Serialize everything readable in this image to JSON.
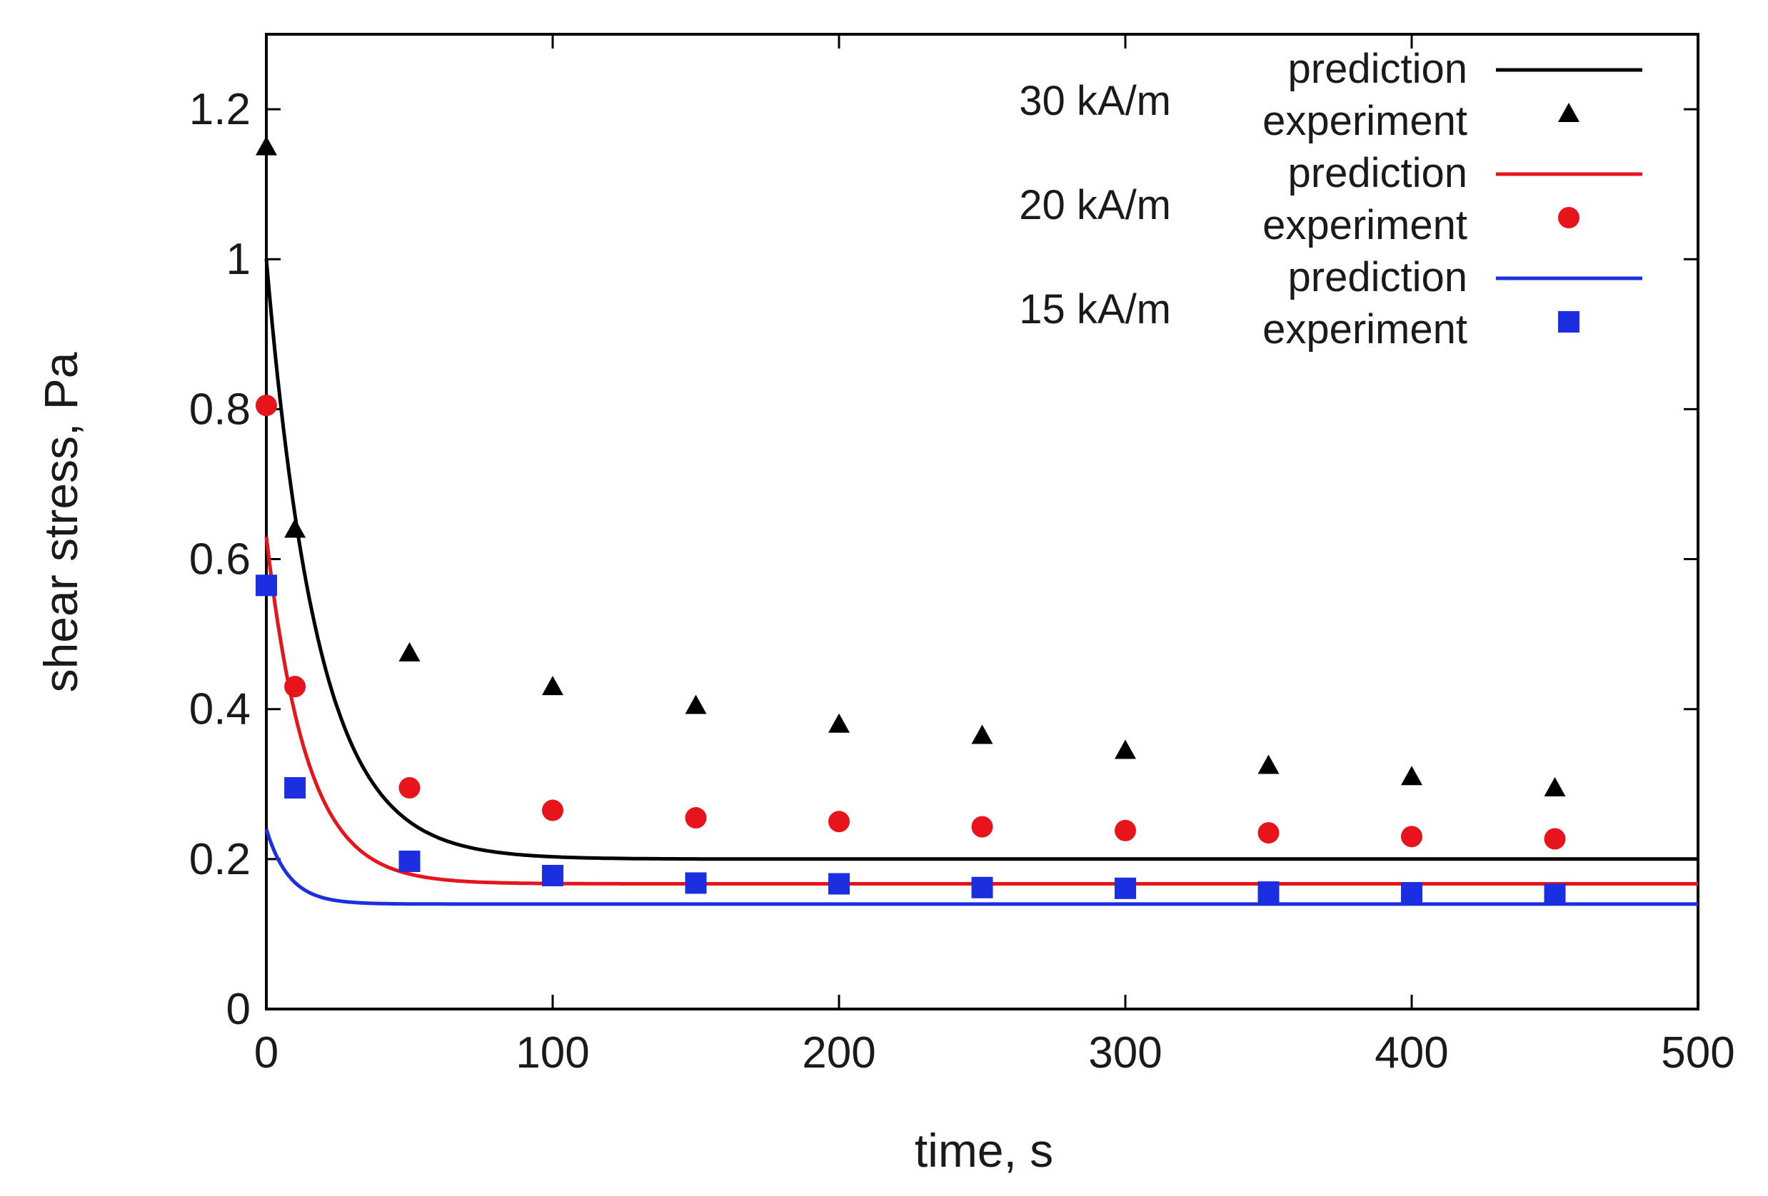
{
  "chart_data": {
    "type": "line",
    "title": "",
    "xlabel": "time, s",
    "ylabel": "shear stress, Pa",
    "xlim": [
      0,
      500
    ],
    "ylim": [
      0,
      1.3
    ],
    "xticks": [
      0,
      100,
      200,
      300,
      400,
      500
    ],
    "xtick_labels": [
      "0",
      "100",
      "200",
      "300",
      "400",
      "500"
    ],
    "yticks": [
      0,
      0.2,
      0.4,
      0.6,
      0.8,
      1,
      1.2
    ],
    "ytick_labels": [
      "0",
      "0.2",
      "0.4",
      "0.6",
      "0.8",
      "1",
      "1.2"
    ],
    "grid": false,
    "legend_position": "top-right",
    "groups": [
      {
        "field": "30 kA/m",
        "color": "#000000",
        "prediction": {
          "label": "prediction",
          "initial": 1.0,
          "final": 0.2,
          "tau": 18
        },
        "experiment": {
          "label": "experiment",
          "marker": "triangle",
          "x": [
            0,
            10,
            50,
            100,
            150,
            200,
            250,
            300,
            350,
            400,
            450
          ],
          "y": [
            1.15,
            0.64,
            0.475,
            0.43,
            0.405,
            0.38,
            0.365,
            0.345,
            0.325,
            0.31,
            0.295
          ]
        }
      },
      {
        "field": "20 kA/m",
        "color": "#e8141c",
        "prediction": {
          "label": "prediction",
          "initial": 0.63,
          "final": 0.167,
          "tau": 14
        },
        "experiment": {
          "label": "experiment",
          "marker": "circle",
          "x": [
            0,
            10,
            50,
            100,
            150,
            200,
            250,
            300,
            350,
            400,
            450
          ],
          "y": [
            0.805,
            0.43,
            0.295,
            0.265,
            0.255,
            0.25,
            0.243,
            0.238,
            0.235,
            0.23,
            0.227
          ]
        }
      },
      {
        "field": "15 kA/m",
        "color": "#1c2fe0",
        "prediction": {
          "label": "prediction",
          "initial": 0.24,
          "final": 0.14,
          "tau": 8
        },
        "experiment": {
          "label": "experiment",
          "marker": "square",
          "x": [
            0,
            10,
            50,
            100,
            150,
            200,
            250,
            300,
            350,
            400,
            450
          ],
          "y": [
            0.565,
            0.295,
            0.197,
            0.178,
            0.168,
            0.167,
            0.162,
            0.161,
            0.156,
            0.155,
            0.153
          ]
        }
      }
    ]
  }
}
